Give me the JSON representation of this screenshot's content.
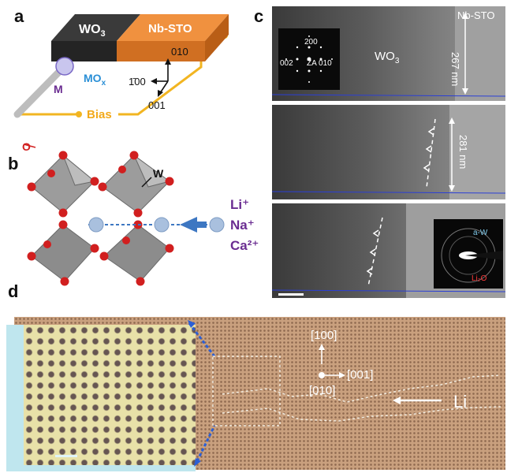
{
  "panels": {
    "a": {
      "letter": "a",
      "wo3_label": "WO",
      "wo3_sub": "3",
      "nbsto_label": "Nb-STO",
      "mox_label": "MO",
      "mox_sub": "x",
      "m_label": "M",
      "bias_label": "Bias",
      "axis_010": "010",
      "axis_100": "1̄00",
      "axis_001": "001"
    },
    "b": {
      "letter": "b",
      "o_label": "O",
      "w_label": "W",
      "ions": [
        "Li⁺",
        "Na⁺",
        "Ca²⁺"
      ]
    },
    "c": {
      "letter": "c",
      "nbsto_label": "Nb-STO",
      "thickness_1": "267 nm",
      "thickness_2": "281 nm",
      "wo3_label": "WO",
      "wo3_sub": "3",
      "diffraction": {
        "spot_200": "200",
        "spot_002": "002",
        "zone_axis": "ZA 010"
      },
      "inset_aw": "a-W",
      "inset_lixo": "Li₂O"
    },
    "d": {
      "letter": "d",
      "dir_100": "[100]",
      "dir_001": "[001]",
      "dir_010": "[010]",
      "li_label": "Li"
    }
  },
  "colors": {
    "wo3_block": "#2f2f2f",
    "nbsto_block": "#e9853b",
    "bias_wire": "#f2b521",
    "oxygen": "#d11f1f",
    "ion": "#a9c0de",
    "mox_text": "#2a8fd6",
    "ion_text": "#6a2c91",
    "arrow_blue": "#3d77c2"
  }
}
